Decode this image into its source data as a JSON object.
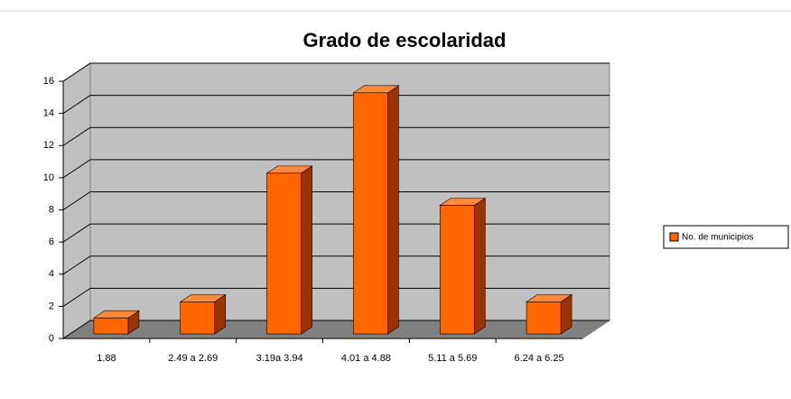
{
  "chart_data": {
    "type": "bar3d",
    "title": "Grado de escolaridad",
    "categories": [
      "1.88",
      "2.49 a 2.69",
      "3.19a 3.94",
      "4.01 a 4.88",
      "5.11 a 5.69",
      "6.24 a 6.25"
    ],
    "series": [
      {
        "name": "No. de municipios",
        "color": "#ff6600",
        "values": [
          1,
          2,
          10,
          15,
          8,
          2
        ]
      }
    ],
    "ylim": [
      0,
      16
    ],
    "yticks": [
      0,
      2,
      4,
      6,
      8,
      10,
      12,
      14,
      16
    ],
    "grid": true,
    "legend": "right"
  }
}
